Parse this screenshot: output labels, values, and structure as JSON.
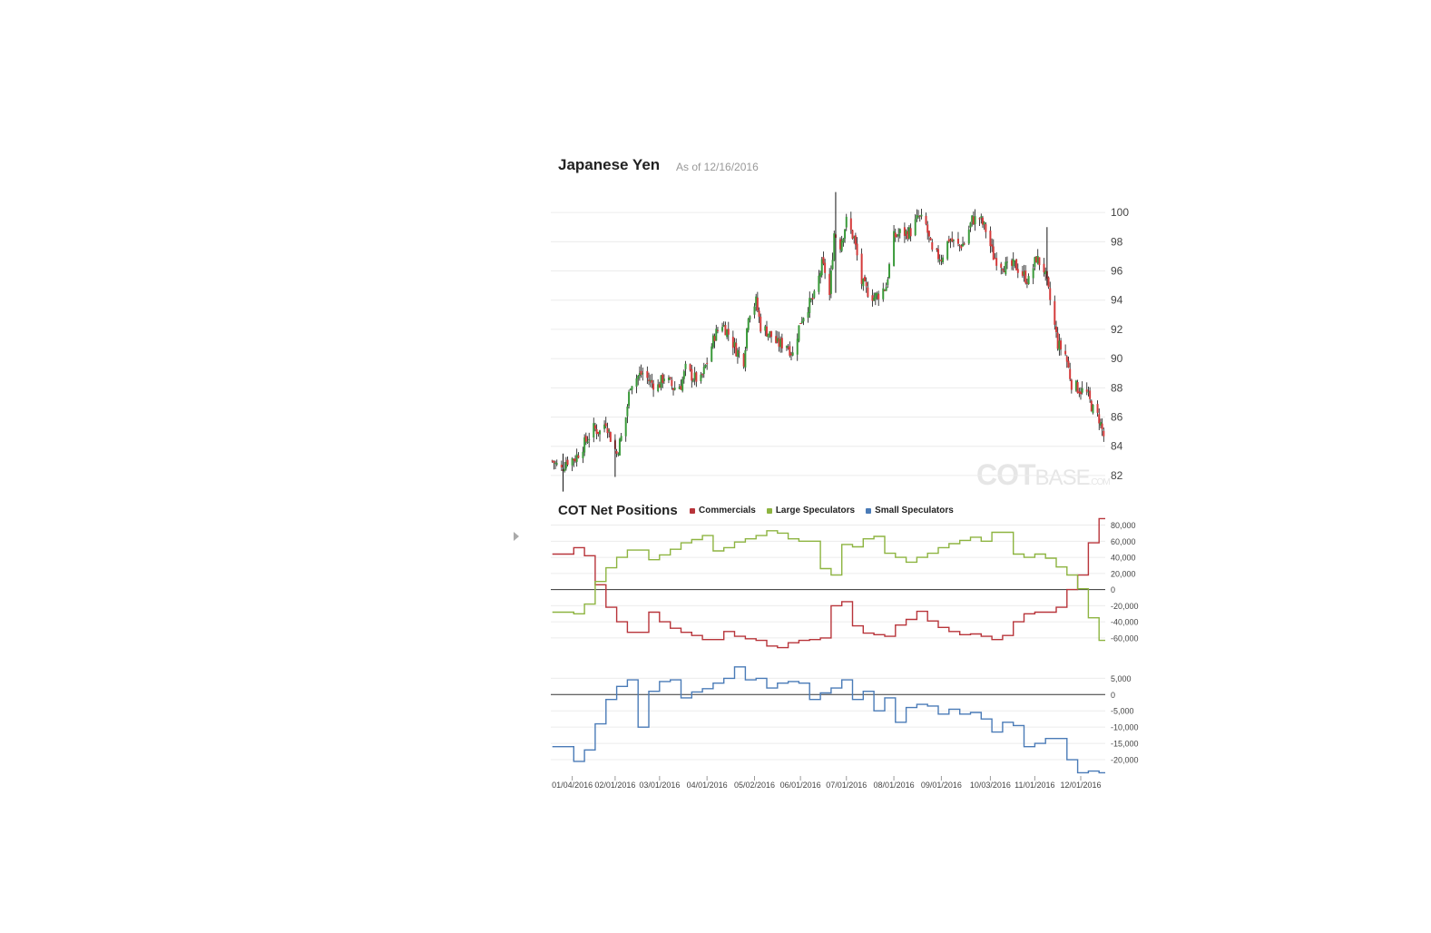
{
  "header": {
    "title": "Japanese Yen",
    "as_of": "As of 12/16/2016"
  },
  "watermark": {
    "bold": "COT",
    "normal": "BASE",
    "suffix": ".COM"
  },
  "cot": {
    "title": "COT Net Positions",
    "legend": [
      {
        "label": "Commercials",
        "color": "#b8343a"
      },
      {
        "label": "Large Speculators",
        "color": "#8db440"
      },
      {
        "label": "Small Speculators",
        "color": "#4a7bb7"
      }
    ]
  },
  "colors": {
    "up": "#3a9a3a",
    "down": "#d43a3a",
    "wick": "#111111",
    "grid": "#ececec",
    "zero": "#333333"
  },
  "chart_data": [
    {
      "type": "candlestick",
      "title": "Japanese Yen",
      "ylim": [
        81,
        101.5
      ],
      "y_ticks": [
        82,
        84,
        86,
        88,
        90,
        92,
        94,
        96,
        98,
        100
      ],
      "close_path": [
        [
          "2015-12-22",
          83.0
        ],
        [
          "2015-12-28",
          82.4
        ],
        [
          "2015-12-31",
          83.0
        ],
        [
          "2016-01-06",
          83.2
        ],
        [
          "2016-01-12",
          84.2
        ],
        [
          "2016-01-18",
          85.2
        ],
        [
          "2016-01-22",
          85.0
        ],
        [
          "2016-01-26",
          85.7
        ],
        [
          "2016-01-29",
          84.6
        ],
        [
          "2016-02-02",
          83.5
        ],
        [
          "2016-02-05",
          84.6
        ],
        [
          "2016-02-08",
          86.0
        ],
        [
          "2016-02-11",
          88.3
        ],
        [
          "2016-02-16",
          88.8
        ],
        [
          "2016-02-19",
          89.0
        ],
        [
          "2016-02-24",
          88.4
        ],
        [
          "2016-02-29",
          88.1
        ],
        [
          "2016-03-04",
          88.8
        ],
        [
          "2016-03-10",
          88.0
        ],
        [
          "2016-03-15",
          88.2
        ],
        [
          "2016-03-18",
          89.3
        ],
        [
          "2016-03-23",
          88.7
        ],
        [
          "2016-03-28",
          88.5
        ],
        [
          "2016-04-01",
          89.8
        ],
        [
          "2016-04-06",
          91.6
        ],
        [
          "2016-04-11",
          92.4
        ],
        [
          "2016-04-15",
          91.7
        ],
        [
          "2016-04-20",
          90.6
        ],
        [
          "2016-04-25",
          89.9
        ],
        [
          "2016-04-28",
          93.1
        ],
        [
          "2016-05-03",
          93.9
        ],
        [
          "2016-05-06",
          92.2
        ],
        [
          "2016-05-11",
          91.8
        ],
        [
          "2016-05-17",
          91.0
        ],
        [
          "2016-05-23",
          91.0
        ],
        [
          "2016-05-27",
          90.3
        ],
        [
          "2016-06-01",
          92.6
        ],
        [
          "2016-06-06",
          93.6
        ],
        [
          "2016-06-10",
          94.2
        ],
        [
          "2016-06-15",
          96.4
        ],
        [
          "2016-06-17",
          96.0
        ],
        [
          "2016-06-20",
          94.3
        ],
        [
          "2016-06-23",
          98.6
        ],
        [
          "2016-06-27",
          97.8
        ],
        [
          "2016-07-01",
          99.4
        ],
        [
          "2016-07-06",
          98.2
        ],
        [
          "2016-07-11",
          95.2
        ],
        [
          "2016-07-14",
          94.7
        ],
        [
          "2016-07-19",
          94.2
        ],
        [
          "2016-07-22",
          94.4
        ],
        [
          "2016-07-27",
          95.0
        ],
        [
          "2016-08-01",
          98.3
        ],
        [
          "2016-08-05",
          98.6
        ],
        [
          "2016-08-09",
          98.6
        ],
        [
          "2016-08-12",
          98.7
        ],
        [
          "2016-08-17",
          99.7
        ],
        [
          "2016-08-22",
          99.1
        ],
        [
          "2016-08-26",
          97.2
        ],
        [
          "2016-09-01",
          96.9
        ],
        [
          "2016-09-06",
          98.2
        ],
        [
          "2016-09-12",
          97.7
        ],
        [
          "2016-09-16",
          97.9
        ],
        [
          "2016-09-21",
          99.5
        ],
        [
          "2016-09-26",
          99.6
        ],
        [
          "2016-09-30",
          98.8
        ],
        [
          "2016-10-05",
          97.0
        ],
        [
          "2016-10-10",
          96.5
        ],
        [
          "2016-10-14",
          96.2
        ],
        [
          "2016-10-19",
          96.4
        ],
        [
          "2016-10-24",
          95.8
        ],
        [
          "2016-10-28",
          95.3
        ],
        [
          "2016-11-02",
          96.9
        ],
        [
          "2016-11-07",
          96.1
        ],
        [
          "2016-11-11",
          94.0
        ],
        [
          "2016-11-16",
          91.0
        ],
        [
          "2016-11-21",
          90.3
        ],
        [
          "2016-11-25",
          88.3
        ],
        [
          "2016-11-30",
          87.9
        ],
        [
          "2016-12-05",
          87.6
        ],
        [
          "2016-12-09",
          86.5
        ],
        [
          "2016-12-13",
          85.9
        ],
        [
          "2016-12-16",
          84.7
        ]
      ],
      "x_ticks": [
        "01/04/2016",
        "02/01/2016",
        "03/01/2016",
        "04/01/2016",
        "05/02/2016",
        "06/01/2016",
        "07/01/2016",
        "08/01/2016",
        "09/01/2016",
        "10/03/2016",
        "11/01/2016",
        "12/01/2016"
      ]
    },
    {
      "type": "line",
      "title": "COT Net Positions",
      "ylim": [
        -68000,
        84000
      ],
      "y_ticks": [
        80000,
        60000,
        40000,
        20000,
        0,
        -20000,
        -40000,
        -60000
      ],
      "y_tick_labels": [
        "80,000",
        "60,000",
        "40,000",
        "20,000",
        "0",
        "-20,000",
        "-40,000",
        "-60,000"
      ],
      "x": [
        "2015-12-22",
        "2015-12-29",
        "2016-01-05",
        "2016-01-12",
        "2016-01-19",
        "2016-01-26",
        "2016-02-02",
        "2016-02-09",
        "2016-02-16",
        "2016-02-23",
        "2016-03-01",
        "2016-03-08",
        "2016-03-15",
        "2016-03-22",
        "2016-03-29",
        "2016-04-05",
        "2016-04-12",
        "2016-04-19",
        "2016-04-26",
        "2016-05-03",
        "2016-05-10",
        "2016-05-17",
        "2016-05-24",
        "2016-05-31",
        "2016-06-07",
        "2016-06-14",
        "2016-06-21",
        "2016-06-28",
        "2016-07-05",
        "2016-07-12",
        "2016-07-19",
        "2016-07-26",
        "2016-08-02",
        "2016-08-09",
        "2016-08-16",
        "2016-08-23",
        "2016-08-30",
        "2016-09-06",
        "2016-09-13",
        "2016-09-20",
        "2016-09-27",
        "2016-10-04",
        "2016-10-11",
        "2016-10-18",
        "2016-10-25",
        "2016-11-01",
        "2016-11-08",
        "2016-11-15",
        "2016-11-22",
        "2016-11-29",
        "2016-12-06",
        "2016-12-13"
      ],
      "series": [
        {
          "name": "Commercials",
          "values": [
            44000,
            44000,
            52000,
            42000,
            6000,
            -22000,
            -40000,
            -53000,
            -53000,
            -28000,
            -40000,
            -48000,
            -53000,
            -57000,
            -62000,
            -62000,
            -52000,
            -58000,
            -61000,
            -63000,
            -70000,
            -72000,
            -66000,
            -63000,
            -62000,
            -60000,
            -20000,
            -15000,
            -45000,
            -54000,
            -56000,
            -58000,
            -44000,
            -37000,
            -27000,
            -39000,
            -47000,
            -52000,
            -56000,
            -55000,
            -58000,
            -62000,
            -57000,
            -40000,
            -30000,
            -28000,
            -28000,
            -22000,
            0,
            18000,
            58000,
            88000
          ]
        },
        {
          "name": "Large Speculators",
          "values": [
            -28000,
            -28000,
            -30000,
            -18000,
            10000,
            27000,
            40000,
            49000,
            49000,
            37000,
            43000,
            50000,
            58000,
            62000,
            67000,
            48000,
            52000,
            59000,
            63000,
            67000,
            73000,
            70000,
            63000,
            60000,
            60000,
            26000,
            18000,
            56000,
            53000,
            63000,
            66000,
            45000,
            40000,
            34000,
            40000,
            45000,
            52000,
            57000,
            61000,
            65000,
            60000,
            71000,
            71000,
            44000,
            40000,
            44000,
            39000,
            28000,
            18000,
            1000,
            -35000,
            -63000
          ]
        }
      ]
    },
    {
      "type": "line",
      "ylim": [
        -25000,
        9000
      ],
      "y_ticks": [
        5000,
        0,
        -5000,
        -10000,
        -15000,
        -20000
      ],
      "y_tick_labels": [
        "5,000",
        "0",
        "-5,000",
        "-10,000",
        "-15,000",
        "-20,000"
      ],
      "x": [
        "2015-12-22",
        "2015-12-29",
        "2016-01-05",
        "2016-01-12",
        "2016-01-19",
        "2016-01-26",
        "2016-02-02",
        "2016-02-09",
        "2016-02-16",
        "2016-02-23",
        "2016-03-01",
        "2016-03-08",
        "2016-03-15",
        "2016-03-22",
        "2016-03-29",
        "2016-04-05",
        "2016-04-12",
        "2016-04-19",
        "2016-04-26",
        "2016-05-03",
        "2016-05-10",
        "2016-05-17",
        "2016-05-24",
        "2016-05-31",
        "2016-06-07",
        "2016-06-14",
        "2016-06-21",
        "2016-06-28",
        "2016-07-05",
        "2016-07-12",
        "2016-07-19",
        "2016-07-26",
        "2016-08-02",
        "2016-08-09",
        "2016-08-16",
        "2016-08-23",
        "2016-08-30",
        "2016-09-06",
        "2016-09-13",
        "2016-09-20",
        "2016-09-27",
        "2016-10-04",
        "2016-10-11",
        "2016-10-18",
        "2016-10-25",
        "2016-11-01",
        "2016-11-08",
        "2016-11-15",
        "2016-11-22",
        "2016-11-29",
        "2016-12-06",
        "2016-12-13"
      ],
      "series": [
        {
          "name": "Small Speculators",
          "values": [
            -16000,
            -16000,
            -20500,
            -17000,
            -9000,
            -1500,
            2500,
            4500,
            -10000,
            1000,
            4000,
            4500,
            -1000,
            800,
            1800,
            3500,
            5000,
            8500,
            4500,
            5000,
            2000,
            3500,
            4000,
            3500,
            -1500,
            500,
            2000,
            4500,
            -1500,
            1000,
            -5000,
            -1000,
            -8500,
            -4000,
            -3000,
            -3500,
            -6000,
            -4500,
            -6000,
            -5500,
            -7500,
            -11500,
            -8500,
            -9500,
            -16000,
            -15000,
            -13500,
            -13500,
            -20000,
            -24000,
            -23500,
            -24000
          ]
        }
      ]
    }
  ]
}
